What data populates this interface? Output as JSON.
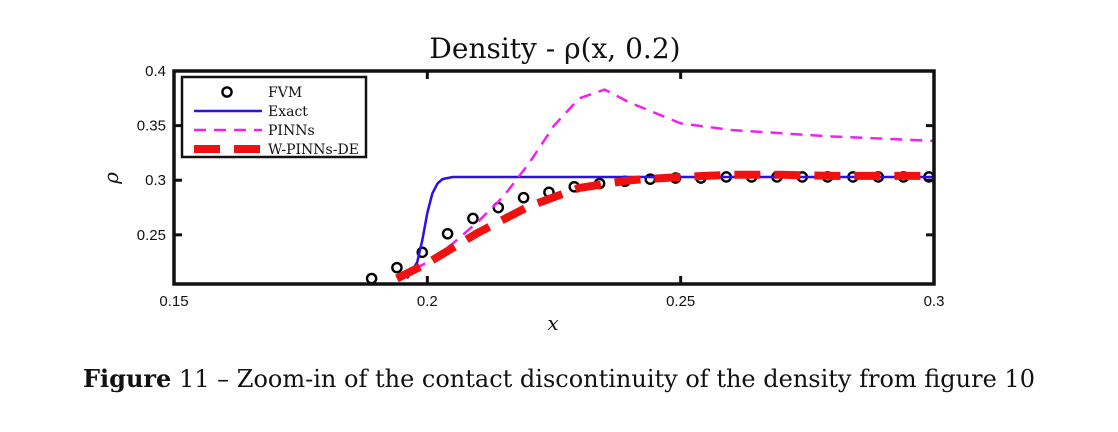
{
  "chart_data": {
    "type": "line",
    "title": "Density - ρ(x, 0.2)",
    "xlabel": "x",
    "ylabel": "ρ",
    "xlim": [
      0.15,
      0.3
    ],
    "ylim": [
      0.205,
      0.4
    ],
    "xticks": [
      0.15,
      0.2,
      0.25,
      0.3
    ],
    "xtick_labels": [
      "0.15",
      "0.2",
      "0.25",
      "0.3"
    ],
    "yticks": [
      0.25,
      0.3,
      0.35,
      0.4
    ],
    "ytick_labels": [
      "0.25",
      "0.3",
      "0.35",
      "0.4"
    ],
    "grid": false,
    "legend_position": "top-left",
    "series": [
      {
        "name": "FVM",
        "style": "markers",
        "color": "#000000",
        "x": [
          0.189,
          0.194,
          0.199,
          0.204,
          0.209,
          0.214,
          0.219,
          0.224,
          0.229,
          0.234,
          0.239,
          0.244,
          0.249,
          0.254,
          0.259,
          0.264,
          0.269,
          0.274,
          0.279,
          0.284,
          0.289,
          0.294,
          0.299
        ],
        "y": [
          0.21,
          0.22,
          0.234,
          0.251,
          0.265,
          0.275,
          0.284,
          0.289,
          0.294,
          0.297,
          0.299,
          0.301,
          0.302,
          0.302,
          0.303,
          0.303,
          0.303,
          0.303,
          0.303,
          0.303,
          0.303,
          0.303,
          0.303
        ]
      },
      {
        "name": "Exact",
        "style": "solid",
        "color": "#2b11e8",
        "x": [
          0.196,
          0.198,
          0.199,
          0.2,
          0.201,
          0.202,
          0.203,
          0.205,
          0.208,
          0.3
        ],
        "y": [
          0.21,
          0.225,
          0.245,
          0.27,
          0.288,
          0.297,
          0.301,
          0.303,
          0.303,
          0.303
        ]
      },
      {
        "name": "PINNs",
        "style": "dashed",
        "color": "#f020f0",
        "x": [
          0.194,
          0.2,
          0.205,
          0.21,
          0.215,
          0.22,
          0.225,
          0.23,
          0.235,
          0.24,
          0.25,
          0.26,
          0.27,
          0.28,
          0.29,
          0.3
        ],
        "y": [
          0.21,
          0.225,
          0.242,
          0.262,
          0.285,
          0.315,
          0.35,
          0.375,
          0.383,
          0.371,
          0.352,
          0.346,
          0.343,
          0.34,
          0.338,
          0.336
        ]
      },
      {
        "name": "W-PINNs-DE",
        "style": "thick-dashed",
        "color": "#f01010",
        "x": [
          0.194,
          0.2,
          0.21,
          0.22,
          0.23,
          0.24,
          0.25,
          0.26,
          0.27,
          0.28,
          0.29,
          0.3
        ],
        "y": [
          0.21,
          0.224,
          0.252,
          0.276,
          0.293,
          0.3,
          0.303,
          0.305,
          0.305,
          0.304,
          0.304,
          0.304
        ]
      }
    ]
  },
  "caption": {
    "label": "Figure",
    "number": "11",
    "dash": "–",
    "text": "Zoom-in of the contact discontinuity of the density from figure 10"
  }
}
